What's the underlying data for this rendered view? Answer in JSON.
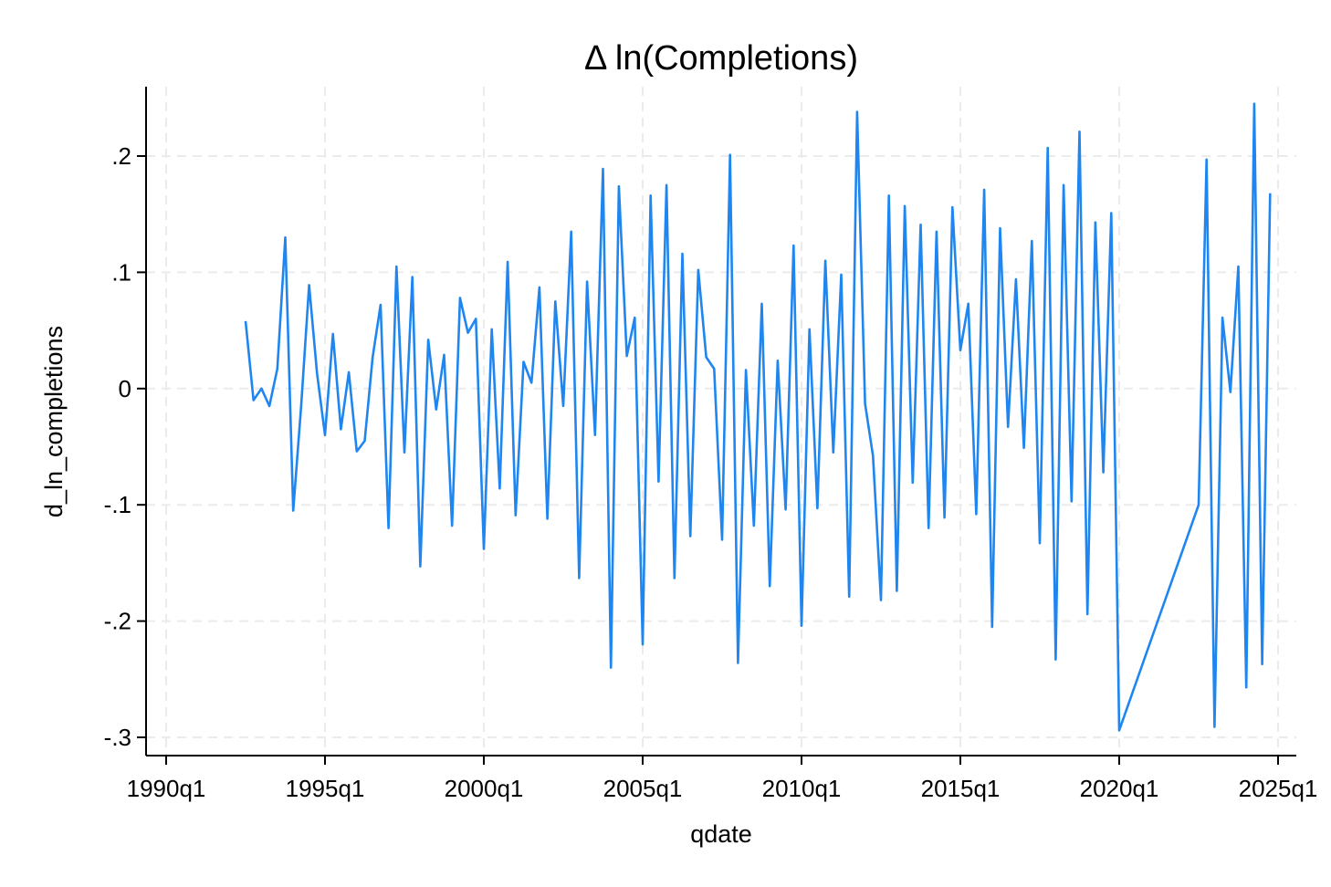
{
  "chart_data": {
    "type": "line",
    "title": "Δ ln(Completions)",
    "xlabel": "qdate",
    "ylabel": "d_ln_completions",
    "xlim": [
      0,
      140
    ],
    "ylim": [
      -0.315,
      0.26
    ],
    "x_ticks": [
      {
        "value": 0,
        "label": "1990q1"
      },
      {
        "value": 20,
        "label": "1995q1"
      },
      {
        "value": 40,
        "label": "2000q1"
      },
      {
        "value": 60,
        "label": "2005q1"
      },
      {
        "value": 80,
        "label": "2010q1"
      },
      {
        "value": 100,
        "label": "2015q1"
      },
      {
        "value": 120,
        "label": "2020q1"
      },
      {
        "value": 140,
        "label": "2025q1"
      }
    ],
    "y_ticks": [
      {
        "value": -0.3,
        "label": "-.3"
      },
      {
        "value": -0.2,
        "label": "-.2"
      },
      {
        "value": -0.1,
        "label": "-.1"
      },
      {
        "value": 0,
        "label": "0"
      },
      {
        "value": 0.1,
        "label": ".1"
      },
      {
        "value": 0.2,
        "label": ".2"
      }
    ],
    "grid": true,
    "line_color": "#1f86f0",
    "series": [
      {
        "points": [
          [
            10,
            0.058
          ],
          [
            11,
            -0.01
          ],
          [
            12,
            0.0
          ],
          [
            13,
            -0.015
          ],
          [
            14,
            0.017
          ],
          [
            15,
            0.13
          ],
          [
            16,
            -0.105
          ],
          [
            17,
            -0.015
          ],
          [
            18,
            0.089
          ],
          [
            19,
            0.013
          ],
          [
            20,
            -0.04
          ],
          [
            21,
            0.047
          ],
          [
            22,
            -0.035
          ],
          [
            23,
            0.014
          ],
          [
            24,
            -0.054
          ],
          [
            25,
            -0.045
          ],
          [
            26,
            0.027
          ],
          [
            27,
            0.072
          ],
          [
            28,
            -0.12
          ],
          [
            29,
            0.105
          ],
          [
            30,
            -0.055
          ],
          [
            31,
            0.096
          ],
          [
            32,
            -0.153
          ],
          [
            33,
            0.042
          ],
          [
            34,
            -0.018
          ],
          [
            35,
            0.029
          ],
          [
            36,
            -0.118
          ],
          [
            37,
            0.078
          ],
          [
            38,
            0.048
          ],
          [
            39,
            0.06
          ],
          [
            40,
            -0.138
          ],
          [
            41,
            0.051
          ],
          [
            42,
            -0.086
          ],
          [
            43,
            0.109
          ],
          [
            44,
            -0.109
          ],
          [
            45,
            0.023
          ],
          [
            46,
            0.005
          ],
          [
            47,
            0.087
          ],
          [
            48,
            -0.112
          ],
          [
            49,
            0.075
          ],
          [
            50,
            -0.015
          ],
          [
            51,
            0.135
          ],
          [
            52,
            -0.163
          ],
          [
            53,
            0.092
          ],
          [
            54,
            -0.04
          ],
          [
            55,
            0.189
          ],
          [
            56,
            -0.24
          ],
          [
            57,
            0.174
          ],
          [
            58,
            0.028
          ],
          [
            59,
            0.061
          ],
          [
            60,
            -0.22
          ],
          [
            61,
            0.166
          ],
          [
            62,
            -0.08
          ],
          [
            63,
            0.175
          ],
          [
            64,
            -0.163
          ],
          [
            65,
            0.116
          ],
          [
            66,
            -0.127
          ],
          [
            67,
            0.102
          ],
          [
            68,
            0.027
          ],
          [
            69,
            0.017
          ],
          [
            70,
            -0.13
          ],
          [
            71,
            0.201
          ],
          [
            72,
            -0.236
          ],
          [
            73,
            0.016
          ],
          [
            74,
            -0.118
          ],
          [
            75,
            0.073
          ],
          [
            76,
            -0.17
          ],
          [
            77,
            0.024
          ],
          [
            78,
            -0.104
          ],
          [
            79,
            0.123
          ],
          [
            80,
            -0.204
          ],
          [
            81,
            0.051
          ],
          [
            82,
            -0.103
          ],
          [
            83,
            0.11
          ],
          [
            84,
            -0.055
          ],
          [
            85,
            0.098
          ],
          [
            86,
            -0.179
          ],
          [
            87,
            0.238
          ],
          [
            88,
            -0.013
          ],
          [
            89,
            -0.058
          ],
          [
            90,
            -0.182
          ],
          [
            91,
            0.166
          ],
          [
            92,
            -0.174
          ],
          [
            93,
            0.157
          ],
          [
            94,
            -0.081
          ],
          [
            95,
            0.141
          ],
          [
            96,
            -0.12
          ],
          [
            97,
            0.135
          ],
          [
            98,
            -0.111
          ],
          [
            99,
            0.156
          ],
          [
            100,
            0.033
          ],
          [
            101,
            0.073
          ],
          [
            102,
            -0.108
          ],
          [
            103,
            0.171
          ],
          [
            104,
            -0.205
          ],
          [
            105,
            0.138
          ],
          [
            106,
            -0.033
          ],
          [
            107,
            0.094
          ],
          [
            108,
            -0.051
          ],
          [
            109,
            0.127
          ],
          [
            110,
            -0.133
          ],
          [
            111,
            0.207
          ],
          [
            112,
            -0.233
          ],
          [
            113,
            0.175
          ],
          [
            114,
            -0.097
          ],
          [
            115,
            0.221
          ],
          [
            116,
            -0.194
          ],
          [
            117,
            0.143
          ],
          [
            118,
            -0.072
          ],
          [
            119,
            0.151
          ],
          [
            120,
            -0.294
          ],
          [
            130,
            -0.1
          ],
          [
            131,
            0.197
          ],
          [
            132,
            -0.291
          ],
          [
            133,
            0.061
          ],
          [
            134,
            -0.003
          ],
          [
            135,
            0.105
          ],
          [
            136,
            -0.257
          ],
          [
            137,
            0.245
          ],
          [
            138,
            -0.237
          ],
          [
            139,
            0.168
          ]
        ]
      }
    ]
  }
}
